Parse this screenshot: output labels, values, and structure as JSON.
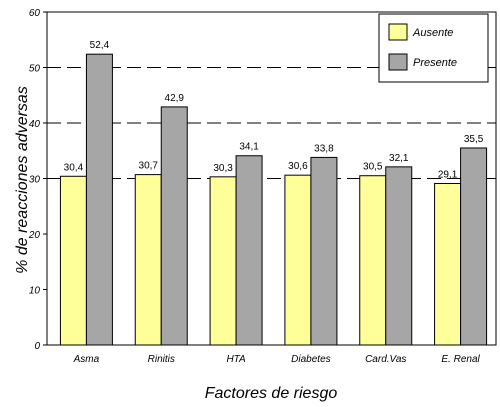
{
  "chart_data": {
    "type": "bar",
    "title": "",
    "xlabel": "Factores de riesgo",
    "ylabel": "% de reacciones adversas",
    "ylim": [
      0,
      60
    ],
    "yticks": [
      0,
      10,
      20,
      30,
      40,
      50,
      60
    ],
    "grid": "dashed horizontal at 30, 40, 50",
    "legend_position": "top-right",
    "categories": [
      "Asma",
      "Rinitis",
      "HTA",
      "Diabetes",
      "Card.Vas",
      "E. Renal"
    ],
    "series": [
      {
        "name": "Ausente",
        "color": "#ffff99",
        "values": [
          30.4,
          30.7,
          30.3,
          30.6,
          30.5,
          29.1
        ],
        "labels": [
          "30,4",
          "30,7",
          "30,3",
          "30,6",
          "30,5",
          "29,1"
        ]
      },
      {
        "name": "Presente",
        "color": "#a6a6a6",
        "values": [
          52.4,
          42.9,
          34.1,
          33.8,
          32.1,
          35.5
        ],
        "labels": [
          "52,4",
          "42,9",
          "34,1",
          "33,8",
          "32,1",
          "35,5"
        ]
      }
    ]
  }
}
